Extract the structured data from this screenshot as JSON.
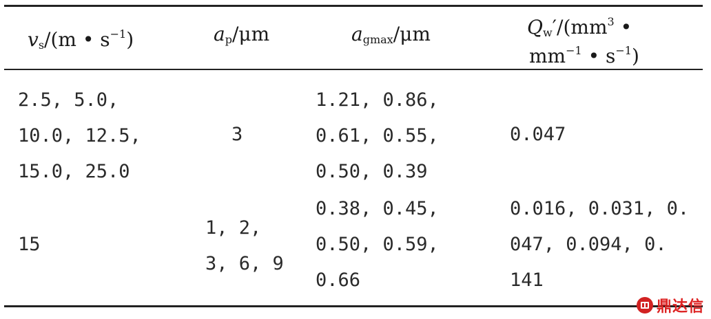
{
  "header": {
    "col1": {
      "sym": "v",
      "sub": "s",
      "unit_pre": "/(m • s",
      "exp": "−1",
      "unit_post": ")"
    },
    "col2": {
      "sym": "a",
      "sub": "p",
      "unit": "/μm"
    },
    "col3": {
      "sym": "a",
      "sub": "gmax",
      "unit": "/μm"
    },
    "col4": {
      "sym": "Q",
      "sub": "w",
      "prime_unit": "′/(mm",
      "exp3": "3",
      "dot": " •",
      "line2_pre": "mm",
      "exp_neg1": "−1",
      "line2_mid": " • s",
      "exp_neg1b": "−1",
      "line2_post": ")"
    }
  },
  "rows": [
    {
      "vs": [
        "2.5, 5.0,",
        "10.0, 12.5,",
        "15.0, 25.0"
      ],
      "ap": [
        "3"
      ],
      "agmax": [
        "1.21, 0.86,",
        "0.61, 0.55,",
        "0.50, 0.39"
      ],
      "qw": [
        "0.047"
      ]
    },
    {
      "vs": [
        "15"
      ],
      "ap": [
        "1, 2,",
        "3, 6, 9"
      ],
      "agmax": [
        "0.38, 0.45,",
        "0.50, 0.59,",
        "0.66"
      ],
      "qw": [
        "0.016, 0.031, 0.",
        "047, 0.094, 0.",
        "141"
      ]
    }
  ],
  "watermark": {
    "text": "鼎达信",
    "color": "#d22222",
    "icon": "logo-icon"
  }
}
